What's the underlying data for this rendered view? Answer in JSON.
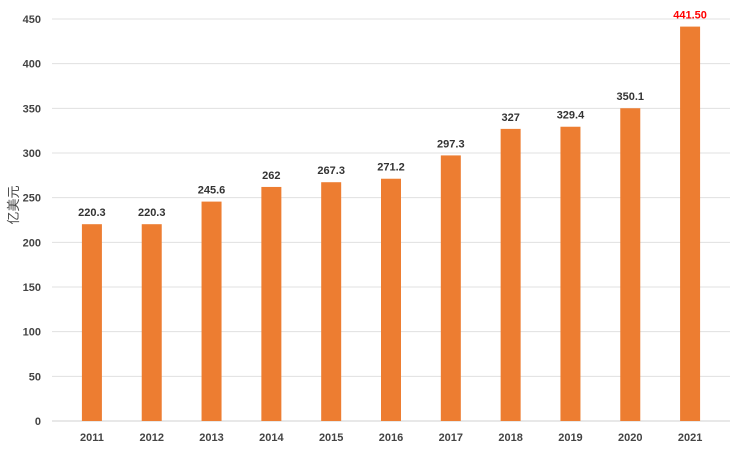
{
  "chart_data": {
    "type": "bar",
    "title": "",
    "xlabel": "",
    "ylabel": "亿美元",
    "ylim": [
      0,
      450
    ],
    "yticks": [
      0,
      50,
      100,
      150,
      200,
      250,
      300,
      350,
      400,
      450
    ],
    "grid": true,
    "categories": [
      "2011",
      "2012",
      "2013",
      "2014",
      "2015",
      "2016",
      "2017",
      "2018",
      "2019",
      "2020",
      "2021"
    ],
    "values": [
      220.3,
      220.3,
      245.6,
      262,
      267.3,
      271.2,
      297.3,
      327,
      329.4,
      350.1,
      441.5
    ],
    "data_labels": [
      "220.3",
      "220.3",
      "245.6",
      "262",
      "267.3",
      "271.2",
      "297.3",
      "327",
      "329.4",
      "350.1",
      "441.50"
    ],
    "colors": {
      "bar": "#ED7D31",
      "highlight_label": "#FF0000",
      "label": "#333333",
      "grid": "#E0E0E0"
    },
    "highlight_index": 10
  }
}
